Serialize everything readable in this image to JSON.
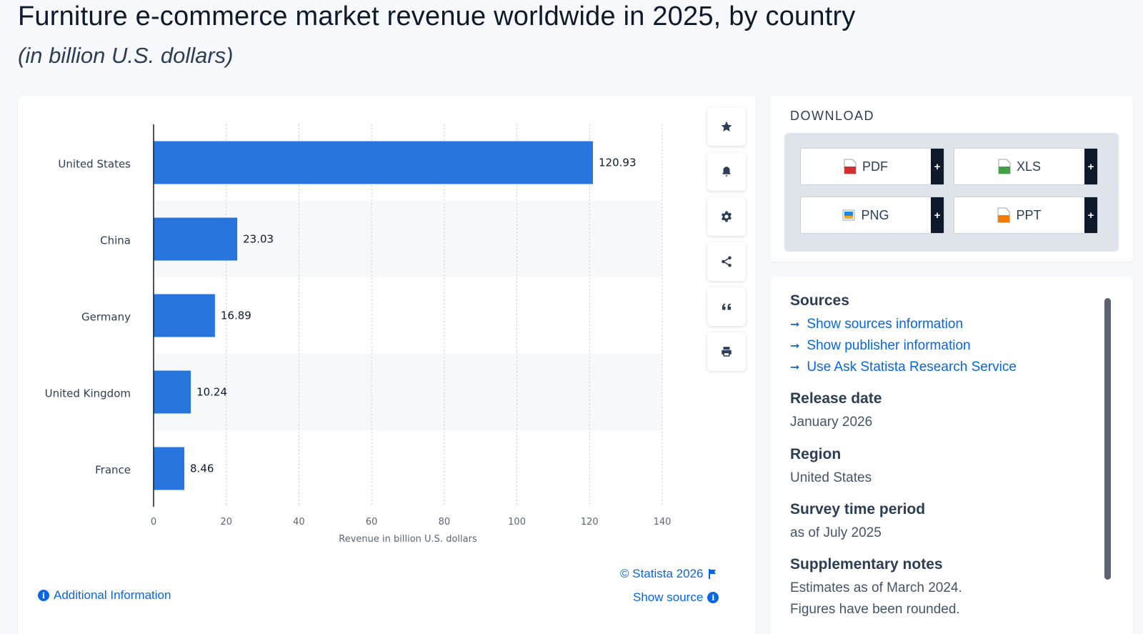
{
  "header": {
    "title": "Furniture e-commerce market revenue worldwide in 2025, by country",
    "subtitle": "(in billion U.S. dollars)"
  },
  "chart_data": {
    "type": "bar",
    "orientation": "horizontal",
    "categories": [
      "United States",
      "China",
      "Germany",
      "United Kingdom",
      "France"
    ],
    "values": [
      120.93,
      23.03,
      16.89,
      10.24,
      8.46
    ],
    "value_labels": [
      "120.93",
      "23.03",
      "16.89",
      "10.24",
      "8.46"
    ],
    "xlabel": "Revenue in billion U.S. dollars",
    "ylabel": "",
    "xlim": [
      0,
      140
    ],
    "ticks": [
      0,
      20,
      40,
      60,
      80,
      100,
      120,
      140
    ],
    "grid": true,
    "bar_color": "#2876dd"
  },
  "chart_footer": {
    "copyright": "© Statista 2026",
    "show_source": "Show source",
    "additional_info": "Additional Information"
  },
  "toolbar": {
    "icons": [
      "star-icon",
      "bell-icon",
      "gear-icon",
      "share-icon",
      "quote-icon",
      "print-icon"
    ]
  },
  "download": {
    "title": "DOWNLOAD",
    "buttons": [
      {
        "label": "PDF",
        "color": "#d32f2f"
      },
      {
        "label": "XLS",
        "color": "#43a047"
      },
      {
        "label": "PNG",
        "color": "#1e88e5"
      },
      {
        "label": "PPT",
        "color": "#f57c00"
      }
    ],
    "plus": "+"
  },
  "info": {
    "sources_title": "Sources",
    "links": [
      "Show sources information",
      "Show publisher information",
      "Use Ask Statista Research Service"
    ],
    "release_title": "Release date",
    "release_value": "January 2026",
    "region_title": "Region",
    "region_value": "United States",
    "period_title": "Survey time period",
    "period_value": "as of July 2025",
    "notes_title": "Supplementary notes",
    "notes_lines": [
      "Estimates as of March 2024.",
      "Figures have been rounded."
    ]
  }
}
